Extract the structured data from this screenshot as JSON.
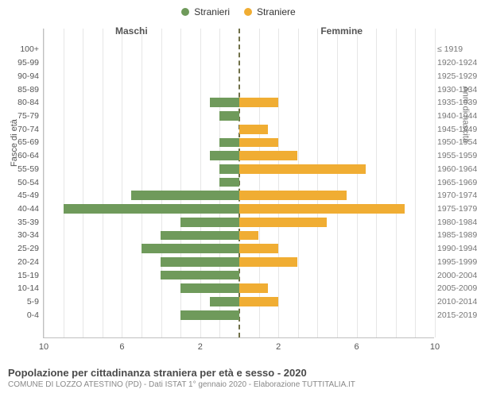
{
  "legend": {
    "male": {
      "label": "Stranieri",
      "color": "#6f9a5b"
    },
    "female": {
      "label": "Straniere",
      "color": "#f0ad33"
    }
  },
  "section_titles": {
    "left": "Maschi",
    "right": "Femmine"
  },
  "axis_titles": {
    "left": "Fasce di età",
    "right": "Anni di nascita"
  },
  "chart": {
    "type": "population-pyramid",
    "x_max": 10,
    "x_ticks": [
      10,
      6,
      2,
      2,
      6,
      10
    ],
    "background_color": "#ffffff",
    "grid_color": "#e6e6e6",
    "center_line_color": "#707048",
    "bar_height_pct": 70,
    "rows": [
      {
        "age": "100+",
        "year": "≤ 1919",
        "m": 0,
        "f": 0
      },
      {
        "age": "95-99",
        "year": "1920-1924",
        "m": 0,
        "f": 0
      },
      {
        "age": "90-94",
        "year": "1925-1929",
        "m": 0,
        "f": 0
      },
      {
        "age": "85-89",
        "year": "1930-1934",
        "m": 0,
        "f": 0
      },
      {
        "age": "80-84",
        "year": "1935-1939",
        "m": 1.5,
        "f": 2.0
      },
      {
        "age": "75-79",
        "year": "1940-1944",
        "m": 1.0,
        "f": 0
      },
      {
        "age": "70-74",
        "year": "1945-1949",
        "m": 0,
        "f": 1.5
      },
      {
        "age": "65-69",
        "year": "1950-1954",
        "m": 1.0,
        "f": 2.0
      },
      {
        "age": "60-64",
        "year": "1955-1959",
        "m": 1.5,
        "f": 3.0
      },
      {
        "age": "55-59",
        "year": "1960-1964",
        "m": 1.0,
        "f": 6.5
      },
      {
        "age": "50-54",
        "year": "1965-1969",
        "m": 1.0,
        "f": 0
      },
      {
        "age": "45-49",
        "year": "1970-1974",
        "m": 5.5,
        "f": 5.5
      },
      {
        "age": "40-44",
        "year": "1975-1979",
        "m": 9.0,
        "f": 8.5
      },
      {
        "age": "35-39",
        "year": "1980-1984",
        "m": 3.0,
        "f": 4.5
      },
      {
        "age": "30-34",
        "year": "1985-1989",
        "m": 4.0,
        "f": 1.0
      },
      {
        "age": "25-29",
        "year": "1990-1994",
        "m": 5.0,
        "f": 2.0
      },
      {
        "age": "20-24",
        "year": "1995-1999",
        "m": 4.0,
        "f": 3.0
      },
      {
        "age": "15-19",
        "year": "2000-2004",
        "m": 4.0,
        "f": 0
      },
      {
        "age": "10-14",
        "year": "2005-2009",
        "m": 3.0,
        "f": 1.5
      },
      {
        "age": "5-9",
        "year": "2010-2014",
        "m": 1.5,
        "f": 2.0
      },
      {
        "age": "0-4",
        "year": "2015-2019",
        "m": 3.0,
        "f": 0
      }
    ]
  },
  "footer": {
    "title": "Popolazione per cittadinanza straniera per età e sesso - 2020",
    "subtitle": "COMUNE DI LOZZO ATESTINO (PD) - Dati ISTAT 1° gennaio 2020 - Elaborazione TUTTITALIA.IT"
  }
}
